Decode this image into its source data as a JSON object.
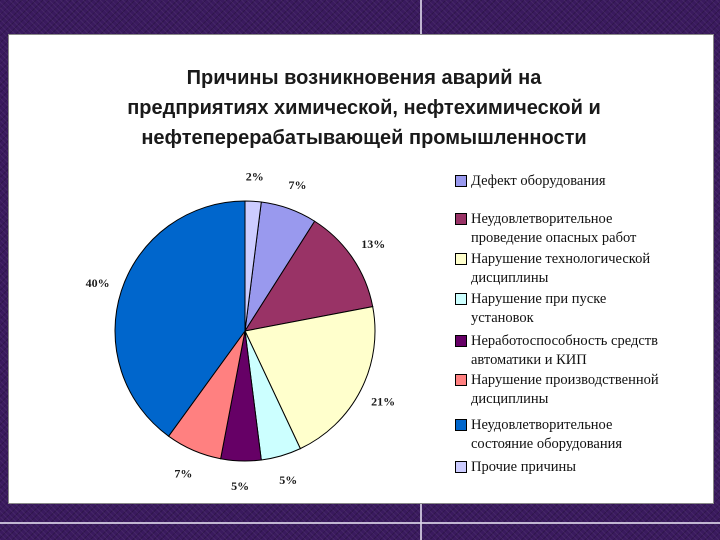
{
  "title_lines": [
    "Причины возникновения аварий на",
    "предприятиях химической, нефтехимической и",
    "нефтеперерабатывающей промышленности"
  ],
  "chart_data": {
    "type": "pie",
    "title": "Причины возникновения аварий на предприятиях химической, нефтехимической и нефтеперерабатывающей промышленности",
    "legend_position": "right",
    "slices": [
      {
        "label": "Дефект оборудования",
        "value": 7,
        "value_label": "7%",
        "color": "#9999ee"
      },
      {
        "label": "Неудовлетворительное проведение опасных работ",
        "value": 13,
        "value_label": "13%",
        "color": "#993366"
      },
      {
        "label": "Нарушение технологической дисциплины",
        "value": 21,
        "value_label": "21%",
        "color": "#ffffcc"
      },
      {
        "label": "Нарушение при пуске установок",
        "value": 5,
        "value_label": "5%",
        "color": "#ccffff"
      },
      {
        "label": "Неработоспособность средств автоматики и КИП",
        "value": 5,
        "value_label": "5%",
        "color": "#660066"
      },
      {
        "label": "Нарушение производственной дисциплины",
        "value": 7,
        "value_label": "7%",
        "color": "#ff8080"
      },
      {
        "label": "Неудовлетворительное состояние оборудования",
        "value": 40,
        "value_label": "40%",
        "color": "#0066cc"
      },
      {
        "label": "Прочие причины",
        "value": 2,
        "value_label": "2%",
        "color": "#ccccff"
      }
    ]
  },
  "legend": [
    {
      "lines": [
        "Дефект оборудования"
      ]
    },
    {
      "lines": [
        "Неудовлетворительное",
        "проведение опасных работ"
      ]
    },
    {
      "lines": [
        "Нарушение технологической",
        "дисциплины"
      ]
    },
    {
      "lines": [
        "Нарушение при пуске",
        "установок"
      ]
    },
    {
      "lines": [
        "Неработоспособность средств",
        "автоматики и КИП"
      ]
    },
    {
      "lines": [
        "Нарушение производственной",
        "дисциплины"
      ]
    },
    {
      "lines": [
        "Неудовлетворительное",
        "состояние оборудования"
      ]
    },
    {
      "lines": [
        "Прочие причины"
      ]
    }
  ]
}
